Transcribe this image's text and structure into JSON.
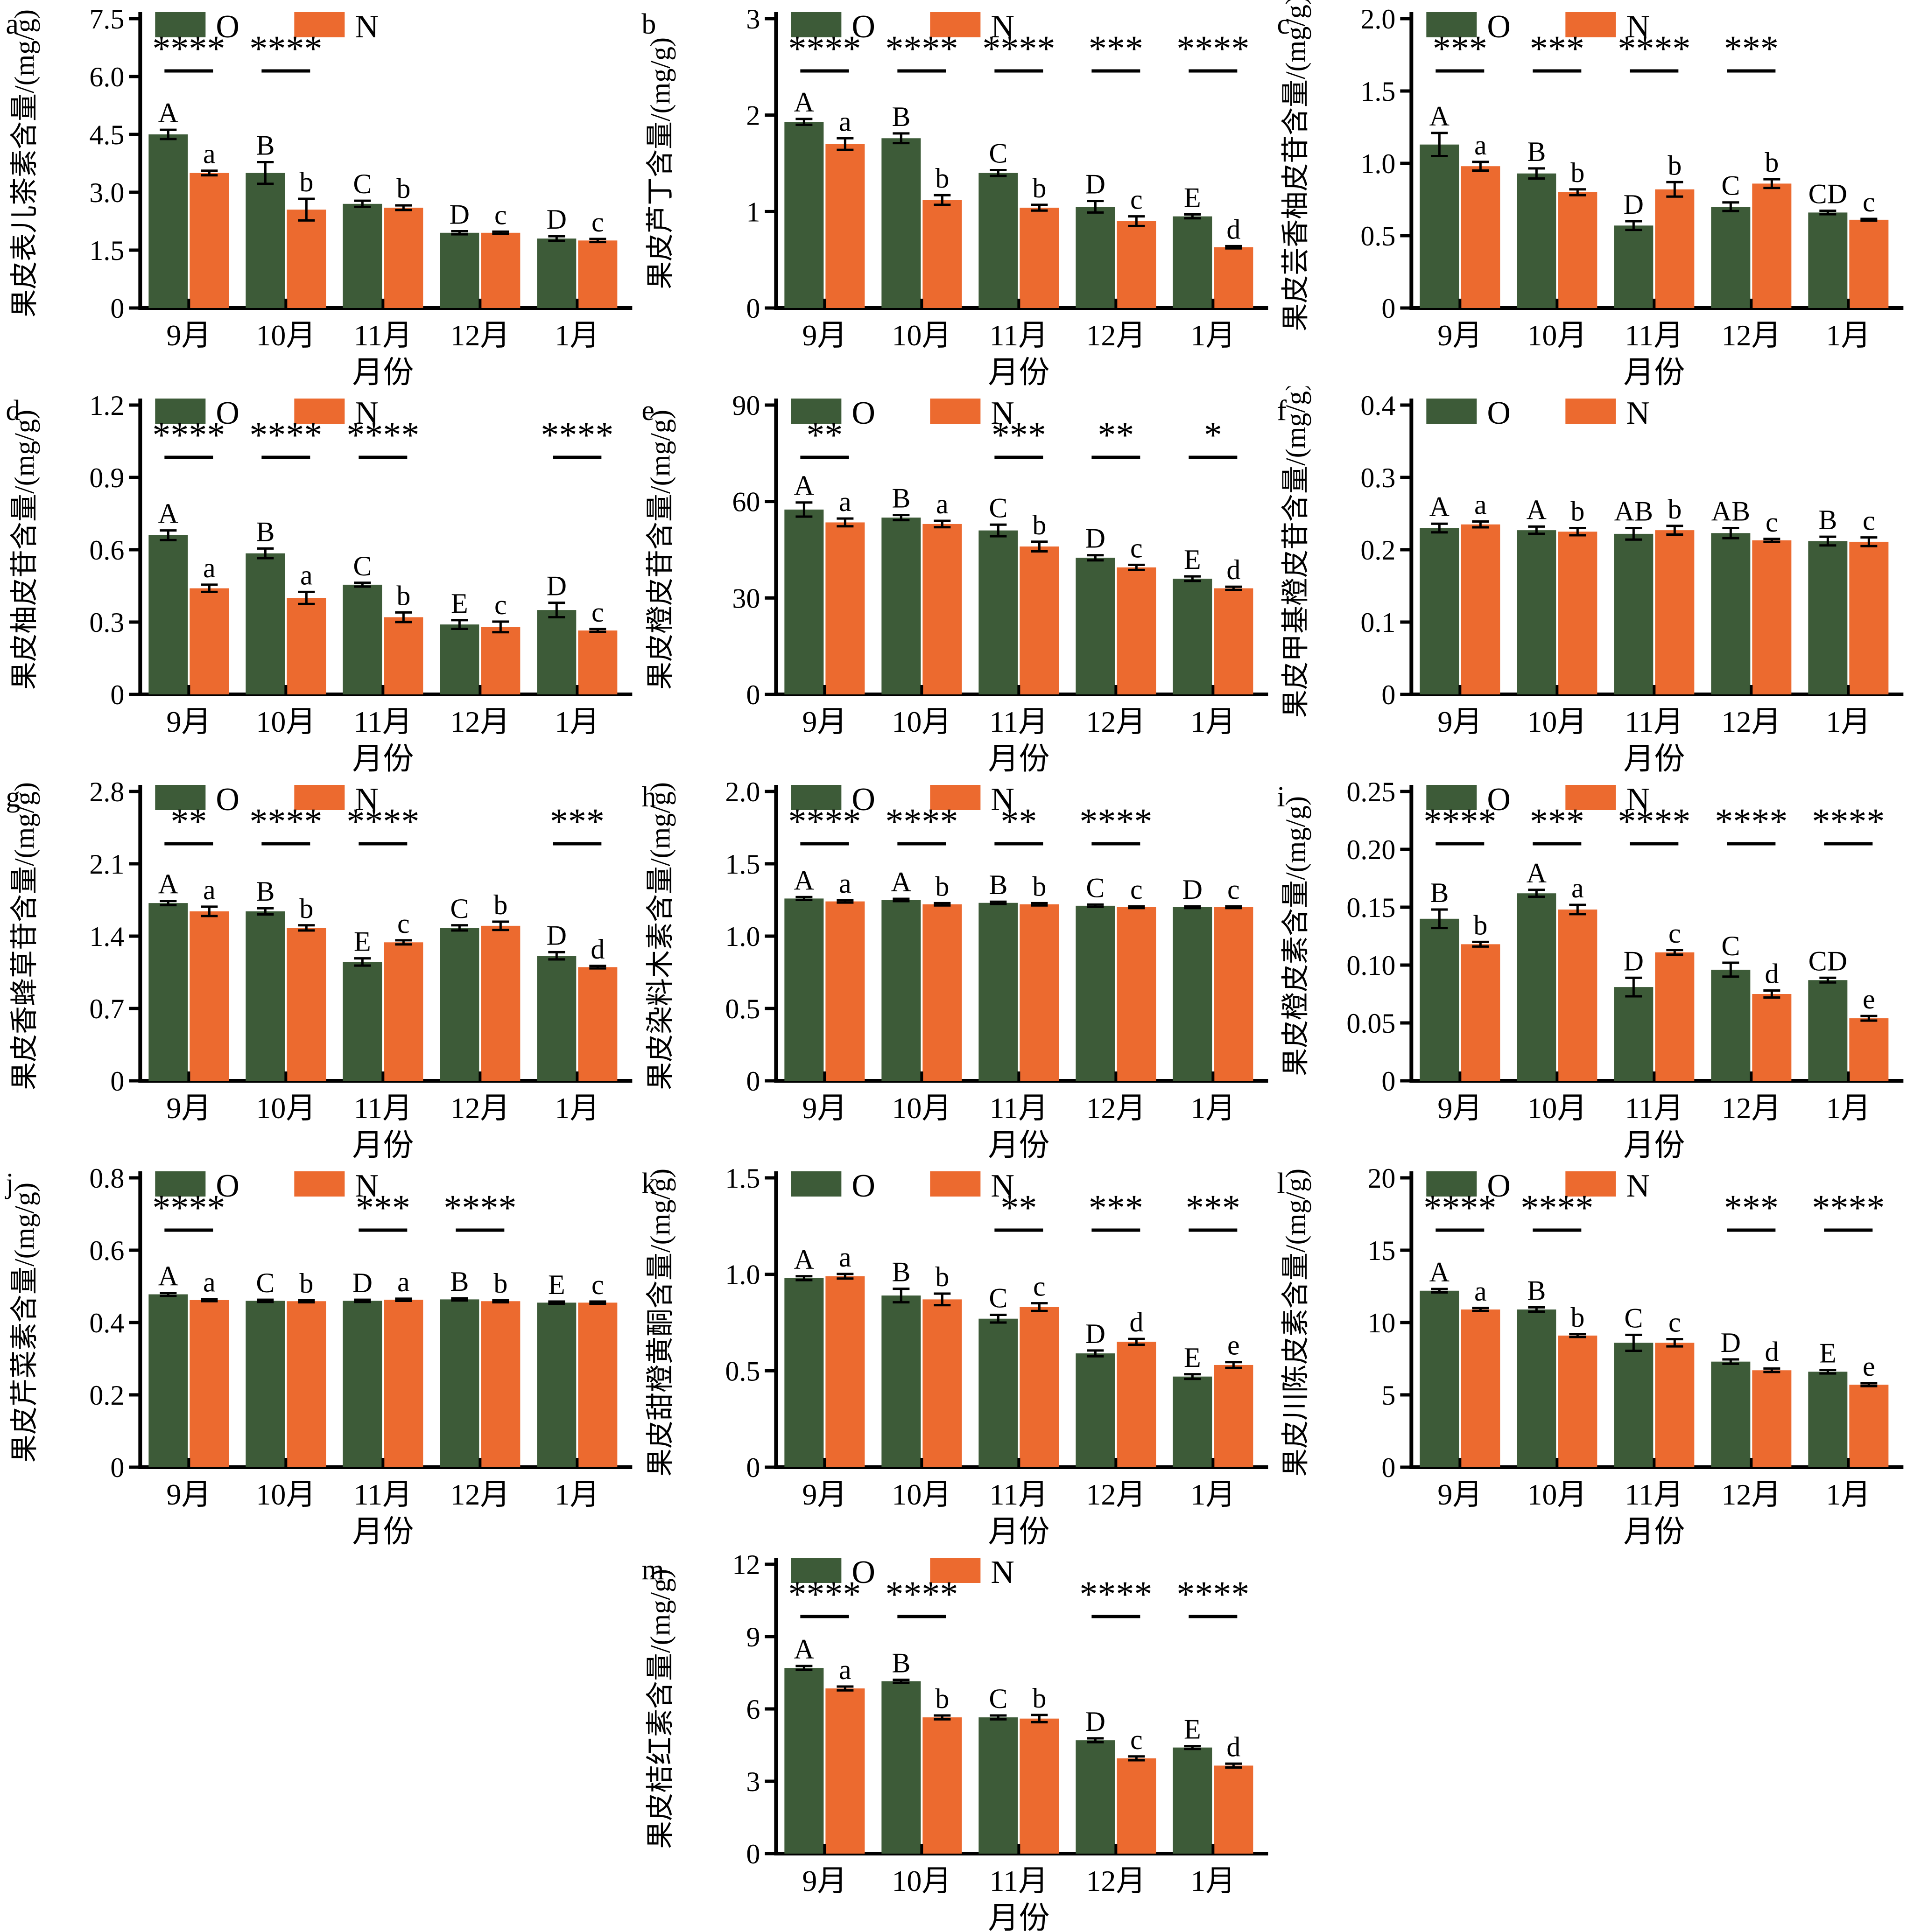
{
  "figure": {
    "xlabel": "月份",
    "categories": [
      "9月",
      "10月",
      "11月",
      "12月",
      "1月"
    ],
    "legend": {
      "o_label": "O",
      "n_label": "N"
    },
    "colors": {
      "o": "#3d5b38",
      "n": "#ec6a2f",
      "axis": "#000000"
    }
  },
  "chart_data": [
    {
      "panel": "a",
      "type": "bar",
      "ylabel": "果皮表儿茶素含量/(mg/g)",
      "ylim": [
        0,
        7.5
      ],
      "yticks": [
        "0",
        "1.5",
        "3.0",
        "4.5",
        "6.0",
        "7.5"
      ],
      "significance": [
        "****",
        "****",
        null,
        null,
        null
      ],
      "series": [
        {
          "name": "O",
          "values": [
            4.5,
            3.5,
            2.7,
            1.95,
            1.8
          ],
          "errors": [
            0.12,
            0.28,
            0.08,
            0.04,
            0.06
          ],
          "letters": [
            "A",
            "B",
            "C",
            "D",
            "D"
          ]
        },
        {
          "name": "N",
          "values": [
            3.5,
            2.55,
            2.6,
            1.95,
            1.75
          ],
          "errors": [
            0.06,
            0.28,
            0.06,
            0.03,
            0.04
          ],
          "letters": [
            "a",
            "b",
            "b",
            "c",
            "c"
          ]
        }
      ]
    },
    {
      "panel": "b",
      "type": "bar",
      "ylabel": "果皮芦丁含量/(mg/g)",
      "ylim": [
        0,
        3
      ],
      "yticks": [
        "0",
        "1",
        "2",
        "3"
      ],
      "significance": [
        "****",
        "****",
        "****",
        "***",
        "****"
      ],
      "series": [
        {
          "name": "O",
          "values": [
            1.93,
            1.76,
            1.4,
            1.05,
            0.95
          ],
          "errors": [
            0.03,
            0.05,
            0.03,
            0.06,
            0.02
          ],
          "letters": [
            "A",
            "B",
            "C",
            "D",
            "E"
          ]
        },
        {
          "name": "N",
          "values": [
            1.7,
            1.12,
            1.04,
            0.9,
            0.63
          ],
          "errors": [
            0.06,
            0.05,
            0.03,
            0.05,
            0.012
          ],
          "letters": [
            "a",
            "b",
            "b",
            "c",
            "d"
          ]
        }
      ]
    },
    {
      "panel": "c",
      "type": "bar",
      "ylabel": "果皮芸香柚皮苷含量/(mg/g)",
      "ylim": [
        0,
        2.0
      ],
      "yticks": [
        "0",
        "0.5",
        "1.0",
        "1.5",
        "2.0"
      ],
      "significance": [
        "***",
        "***",
        "****",
        "***",
        null
      ],
      "series": [
        {
          "name": "O",
          "values": [
            1.13,
            0.93,
            0.57,
            0.7,
            0.66
          ],
          "errors": [
            0.08,
            0.035,
            0.03,
            0.03,
            0.012
          ],
          "letters": [
            "A",
            "B",
            "D",
            "C",
            "CD"
          ]
        },
        {
          "name": "N",
          "values": [
            0.98,
            0.8,
            0.82,
            0.86,
            0.61
          ],
          "errors": [
            0.03,
            0.02,
            0.05,
            0.03,
            0.006
          ],
          "letters": [
            "a",
            "b",
            "b",
            "b",
            "c"
          ]
        }
      ]
    },
    {
      "panel": "d",
      "type": "bar",
      "ylabel": "果皮柚皮苷含量/(mg/g)",
      "ylim": [
        0,
        1.2
      ],
      "yticks": [
        "0",
        "0.3",
        "0.6",
        "0.9",
        "1.2"
      ],
      "significance": [
        "****",
        "****",
        "****",
        null,
        "****"
      ],
      "series": [
        {
          "name": "O",
          "values": [
            0.66,
            0.585,
            0.455,
            0.29,
            0.35
          ],
          "errors": [
            0.02,
            0.02,
            0.008,
            0.018,
            0.03
          ],
          "letters": [
            "A",
            "B",
            "C",
            "E",
            "D"
          ]
        },
        {
          "name": "N",
          "values": [
            0.44,
            0.4,
            0.32,
            0.28,
            0.265
          ],
          "errors": [
            0.015,
            0.025,
            0.02,
            0.022,
            0.006
          ],
          "letters": [
            "a",
            "a",
            "b",
            "c",
            "c"
          ]
        }
      ]
    },
    {
      "panel": "e",
      "type": "bar",
      "ylabel": "果皮橙皮苷含量/(mg/g)",
      "ylim": [
        0,
        90
      ],
      "yticks": [
        "0",
        "30",
        "60",
        "90"
      ],
      "significance": [
        "**",
        null,
        "***",
        "**",
        "*"
      ],
      "series": [
        {
          "name": "O",
          "values": [
            57.5,
            55,
            51,
            42.5,
            36
          ],
          "errors": [
            2.2,
            0.8,
            1.8,
            0.8,
            0.7
          ],
          "letters": [
            "A",
            "B",
            "C",
            "D",
            "E"
          ]
        },
        {
          "name": "N",
          "values": [
            53.5,
            53,
            46,
            39.5,
            33
          ],
          "errors": [
            1.2,
            1.0,
            1.5,
            0.8,
            0.5
          ],
          "letters": [
            "a",
            "a",
            "b",
            "c",
            "d"
          ]
        }
      ]
    },
    {
      "panel": "f",
      "type": "bar",
      "ylabel": "果皮甲基橙皮苷含量/(mg/g)",
      "ylim": [
        0,
        0.4
      ],
      "yticks": [
        "0",
        "0.1",
        "0.2",
        "0.3",
        "0.4"
      ],
      "significance": [
        null,
        null,
        null,
        null,
        null
      ],
      "series": [
        {
          "name": "O",
          "values": [
            0.23,
            0.227,
            0.222,
            0.223,
            0.212
          ],
          "errors": [
            0.006,
            0.005,
            0.008,
            0.007,
            0.006
          ],
          "letters": [
            "A",
            "A",
            "AB",
            "AB",
            "B"
          ]
        },
        {
          "name": "N",
          "values": [
            0.235,
            0.225,
            0.227,
            0.213,
            0.211
          ],
          "errors": [
            0.004,
            0.005,
            0.006,
            0.002,
            0.006
          ],
          "letters": [
            "a",
            "b",
            "b",
            "c",
            "c"
          ]
        }
      ]
    },
    {
      "panel": "g",
      "type": "bar",
      "ylabel": "果皮香蜂草苷含量/(mg/g)",
      "ylim": [
        0,
        2.8
      ],
      "yticks": [
        "0",
        "0.7",
        "1.4",
        "2.1",
        "2.8"
      ],
      "significance": [
        "**",
        "****",
        "****",
        null,
        "***"
      ],
      "series": [
        {
          "name": "O",
          "values": [
            1.72,
            1.64,
            1.15,
            1.48,
            1.21
          ],
          "errors": [
            0.02,
            0.03,
            0.035,
            0.025,
            0.035
          ],
          "letters": [
            "A",
            "B",
            "E",
            "C",
            "D"
          ]
        },
        {
          "name": "N",
          "values": [
            1.64,
            1.48,
            1.34,
            1.5,
            1.1
          ],
          "errors": [
            0.045,
            0.025,
            0.02,
            0.04,
            0.012
          ],
          "letters": [
            "a",
            "b",
            "c",
            "b",
            "d"
          ]
        }
      ]
    },
    {
      "panel": "h",
      "type": "bar",
      "ylabel": "果皮染料木素含量/(mg/g)",
      "ylim": [
        0,
        2.0
      ],
      "yticks": [
        "0",
        "0.5",
        "1.0",
        "1.5",
        "2.0"
      ],
      "significance": [
        "****",
        "****",
        "**",
        "****",
        null
      ],
      "series": [
        {
          "name": "O",
          "values": [
            1.26,
            1.25,
            1.23,
            1.21,
            1.2
          ],
          "errors": [
            0.01,
            0.008,
            0.008,
            0.008,
            0.006
          ],
          "letters": [
            "A",
            "A",
            "B",
            "C",
            "D"
          ]
        },
        {
          "name": "N",
          "values": [
            1.24,
            1.22,
            1.22,
            1.2,
            1.2
          ],
          "errors": [
            0.008,
            0.008,
            0.008,
            0.006,
            0.006
          ],
          "letters": [
            "a",
            "b",
            "b",
            "c",
            "c"
          ]
        }
      ]
    },
    {
      "panel": "i",
      "type": "bar",
      "ylabel": "果皮橙皮素含量/(mg/g)",
      "ylim": [
        0,
        0.25
      ],
      "yticks": [
        "0",
        "0.05",
        "0.10",
        "0.15",
        "0.20",
        "0.25"
      ],
      "significance": [
        "****",
        "***",
        "****",
        "****",
        "****"
      ],
      "series": [
        {
          "name": "O",
          "values": [
            0.14,
            0.162,
            0.081,
            0.096,
            0.087
          ],
          "errors": [
            0.008,
            0.003,
            0.008,
            0.006,
            0.002
          ],
          "letters": [
            "B",
            "A",
            "D",
            "C",
            "CD"
          ]
        },
        {
          "name": "N",
          "values": [
            0.118,
            0.148,
            0.111,
            0.075,
            0.054
          ],
          "errors": [
            0.002,
            0.004,
            0.002,
            0.003,
            0.002
          ],
          "letters": [
            "b",
            "a",
            "c",
            "d",
            "e"
          ]
        }
      ]
    },
    {
      "panel": "j",
      "type": "bar",
      "ylabel": "果皮芹菜素含量/(mg/g)",
      "ylim": [
        0,
        0.8
      ],
      "yticks": [
        "0",
        "0.2",
        "0.4",
        "0.6",
        "0.8"
      ],
      "significance": [
        "****",
        null,
        "***",
        "****",
        null
      ],
      "series": [
        {
          "name": "O",
          "values": [
            0.478,
            0.46,
            0.46,
            0.464,
            0.455
          ],
          "errors": [
            0.004,
            0.003,
            0.003,
            0.003,
            0.003
          ],
          "letters": [
            "A",
            "C",
            "D",
            "B",
            "E"
          ]
        },
        {
          "name": "N",
          "values": [
            0.462,
            0.459,
            0.463,
            0.459,
            0.455
          ],
          "errors": [
            0.003,
            0.003,
            0.003,
            0.003,
            0.003
          ],
          "letters": [
            "a",
            "b",
            "a",
            "b",
            "c"
          ]
        }
      ]
    },
    {
      "panel": "k",
      "type": "bar",
      "ylabel": "果皮甜橙黄酮含量/(mg/g)",
      "ylim": [
        0,
        1.5
      ],
      "yticks": [
        "0",
        "0.5",
        "1.0",
        "1.5"
      ],
      "significance": [
        null,
        null,
        "**",
        "***",
        "***"
      ],
      "series": [
        {
          "name": "O",
          "values": [
            0.98,
            0.89,
            0.77,
            0.59,
            0.47
          ],
          "errors": [
            0.01,
            0.035,
            0.02,
            0.015,
            0.012
          ],
          "letters": [
            "A",
            "B",
            "C",
            "D",
            "E"
          ]
        },
        {
          "name": "N",
          "values": [
            0.99,
            0.87,
            0.83,
            0.65,
            0.53
          ],
          "errors": [
            0.012,
            0.03,
            0.02,
            0.015,
            0.015
          ],
          "letters": [
            "a",
            "b",
            "c",
            "d",
            "e"
          ]
        }
      ]
    },
    {
      "panel": "l",
      "type": "bar",
      "ylabel": "果皮川陈皮素含量/(mg/g)",
      "ylim": [
        0,
        20
      ],
      "yticks": [
        "0",
        "5",
        "10",
        "15",
        "20"
      ],
      "significance": [
        "****",
        "****",
        null,
        "***",
        "****"
      ],
      "series": [
        {
          "name": "O",
          "values": [
            12.2,
            10.9,
            8.6,
            7.3,
            6.6
          ],
          "errors": [
            0.12,
            0.15,
            0.55,
            0.15,
            0.12
          ],
          "letters": [
            "A",
            "B",
            "C",
            "D",
            "E"
          ]
        },
        {
          "name": "N",
          "values": [
            10.9,
            9.1,
            8.6,
            6.7,
            5.7
          ],
          "errors": [
            0.1,
            0.1,
            0.25,
            0.12,
            0.1
          ],
          "letters": [
            "a",
            "b",
            "c",
            "d",
            "e"
          ]
        }
      ]
    },
    {
      "panel": "m",
      "type": "bar",
      "ylabel": "果皮桔红素含量/(mg/g)",
      "ylim": [
        0,
        12
      ],
      "yticks": [
        "0",
        "3",
        "6",
        "9",
        "12"
      ],
      "significance": [
        "****",
        "****",
        null,
        "****",
        "****"
      ],
      "series": [
        {
          "name": "O",
          "values": [
            7.7,
            7.15,
            5.65,
            4.7,
            4.4
          ],
          "errors": [
            0.08,
            0.06,
            0.08,
            0.08,
            0.06
          ],
          "letters": [
            "A",
            "B",
            "C",
            "D",
            "E"
          ]
        },
        {
          "name": "N",
          "values": [
            6.85,
            5.65,
            5.6,
            3.95,
            3.65
          ],
          "errors": [
            0.08,
            0.08,
            0.15,
            0.08,
            0.08
          ],
          "letters": [
            "a",
            "b",
            "b",
            "c",
            "d"
          ]
        }
      ]
    }
  ]
}
